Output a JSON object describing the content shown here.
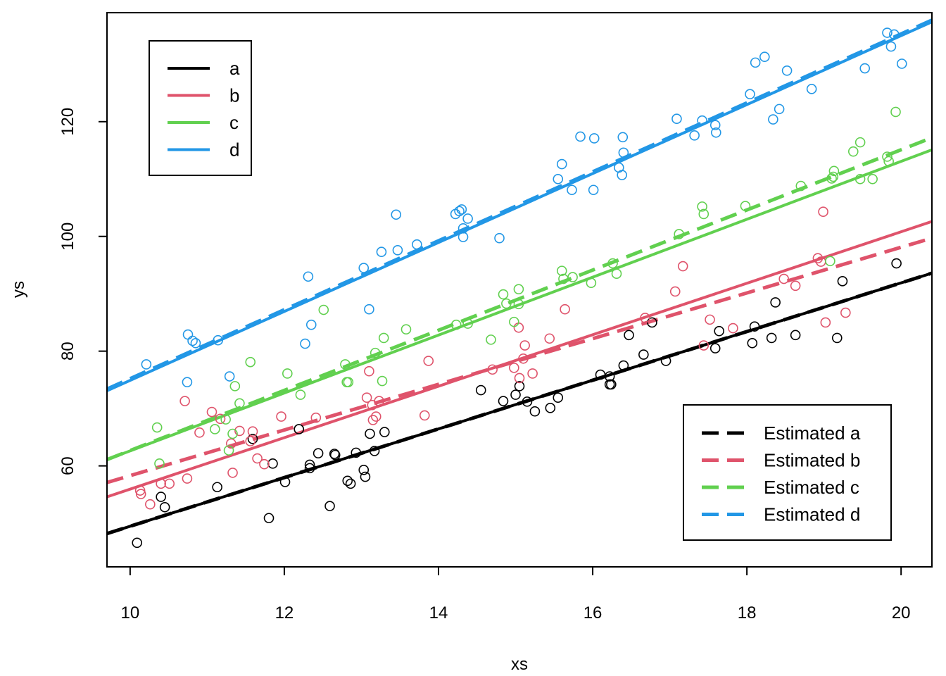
{
  "chart_data": {
    "type": "scatter",
    "title": "",
    "xlabel": "xs",
    "ylabel": "ys",
    "xlim": [
      9.7,
      20.4
    ],
    "ylim": [
      42.4,
      139.0
    ],
    "xticks": [
      10,
      12,
      14,
      16,
      18,
      20
    ],
    "yticks": [
      60,
      80,
      100,
      120
    ],
    "grid": false,
    "legend_lines_position": "top-left",
    "legend_estimated_position": "bottom-right",
    "series": [
      {
        "name": "a",
        "color": "#000000",
        "line": [
          [
            9.7,
            48.2
          ],
          [
            20.4,
            93.6
          ]
        ],
        "estimated_line": [
          [
            9.7,
            48.2
          ],
          [
            20.4,
            93.6
          ]
        ],
        "estimated_label": "Estimated a",
        "points": [
          [
            10.09,
            46.6
          ],
          [
            10.4,
            54.6
          ],
          [
            10.45,
            52.8
          ],
          [
            11.13,
            56.3
          ],
          [
            11.59,
            64.7
          ],
          [
            11.8,
            50.9
          ],
          [
            11.85,
            60.4
          ],
          [
            12.01,
            57.2
          ],
          [
            12.19,
            66.4
          ],
          [
            12.33,
            59.6
          ],
          [
            12.33,
            60.2
          ],
          [
            12.44,
            62.2
          ],
          [
            12.59,
            53.0
          ],
          [
            12.65,
            62.1
          ],
          [
            12.66,
            61.9
          ],
          [
            12.82,
            57.4
          ],
          [
            12.86,
            56.9
          ],
          [
            12.93,
            62.3
          ],
          [
            13.03,
            59.3
          ],
          [
            13.05,
            58.1
          ],
          [
            13.11,
            65.6
          ],
          [
            13.17,
            62.6
          ],
          [
            13.3,
            65.9
          ],
          [
            14.55,
            73.2
          ],
          [
            14.84,
            71.3
          ],
          [
            15.0,
            72.4
          ],
          [
            15.05,
            73.9
          ],
          [
            15.15,
            71.2
          ],
          [
            15.25,
            69.5
          ],
          [
            15.45,
            70.1
          ],
          [
            15.55,
            71.9
          ],
          [
            16.1,
            75.9
          ],
          [
            16.22,
            75.6
          ],
          [
            16.22,
            74.2
          ],
          [
            16.24,
            74.2
          ],
          [
            16.4,
            77.5
          ],
          [
            16.47,
            82.8
          ],
          [
            16.66,
            79.4
          ],
          [
            16.77,
            85.0
          ],
          [
            16.95,
            78.3
          ],
          [
            17.59,
            80.5
          ],
          [
            17.64,
            83.5
          ],
          [
            18.07,
            81.4
          ],
          [
            18.1,
            84.3
          ],
          [
            18.32,
            82.3
          ],
          [
            18.37,
            88.5
          ],
          [
            18.63,
            82.8
          ],
          [
            19.17,
            82.3
          ],
          [
            19.24,
            92.2
          ],
          [
            19.94,
            95.3
          ]
        ]
      },
      {
        "name": "b",
        "color": "#df536b",
        "line": [
          [
            9.7,
            54.6
          ],
          [
            20.4,
            102.6
          ]
        ],
        "estimated_line": [
          [
            9.7,
            57.1
          ],
          [
            20.4,
            99.7
          ]
        ],
        "estimated_label": "Estimated b",
        "points": [
          [
            10.13,
            55.7
          ],
          [
            10.14,
            55.1
          ],
          [
            10.26,
            53.3
          ],
          [
            10.4,
            56.9
          ],
          [
            10.51,
            56.9
          ],
          [
            10.71,
            71.3
          ],
          [
            10.74,
            57.8
          ],
          [
            10.9,
            65.8
          ],
          [
            11.06,
            69.4
          ],
          [
            11.17,
            68.2
          ],
          [
            11.31,
            63.9
          ],
          [
            11.33,
            58.8
          ],
          [
            11.42,
            66.1
          ],
          [
            11.56,
            64.3
          ],
          [
            11.59,
            66.0
          ],
          [
            11.65,
            61.3
          ],
          [
            11.74,
            60.3
          ],
          [
            11.96,
            68.6
          ],
          [
            12.41,
            68.4
          ],
          [
            13.07,
            71.9
          ],
          [
            13.14,
            70.6
          ],
          [
            13.15,
            68.0
          ],
          [
            13.19,
            68.6
          ],
          [
            13.23,
            71.3
          ],
          [
            13.1,
            76.5
          ],
          [
            13.82,
            68.8
          ],
          [
            13.87,
            78.3
          ],
          [
            14.7,
            76.8
          ],
          [
            14.98,
            77.1
          ],
          [
            15.04,
            84.1
          ],
          [
            15.05,
            75.3
          ],
          [
            15.1,
            78.7
          ],
          [
            15.12,
            81.0
          ],
          [
            15.22,
            76.1
          ],
          [
            15.44,
            82.2
          ],
          [
            15.64,
            87.3
          ],
          [
            16.68,
            85.8
          ],
          [
            17.07,
            90.4
          ],
          [
            17.17,
            94.8
          ],
          [
            17.44,
            81.0
          ],
          [
            17.52,
            85.5
          ],
          [
            17.82,
            84.0
          ],
          [
            18.48,
            92.6
          ],
          [
            18.63,
            91.4
          ],
          [
            18.92,
            96.2
          ],
          [
            18.96,
            95.6
          ],
          [
            18.99,
            104.3
          ],
          [
            19.02,
            85.0
          ],
          [
            19.28,
            86.7
          ]
        ]
      },
      {
        "name": "c",
        "color": "#61d04f",
        "line": [
          [
            9.7,
            61.1
          ],
          [
            20.4,
            115.1
          ]
        ],
        "estimated_line": [
          [
            9.7,
            61.1
          ],
          [
            20.4,
            117.2
          ]
        ],
        "estimated_label": "Estimated c",
        "points": [
          [
            10.35,
            66.7
          ],
          [
            10.38,
            60.4
          ],
          [
            11.1,
            66.4
          ],
          [
            11.24,
            68.1
          ],
          [
            11.28,
            62.7
          ],
          [
            11.33,
            65.6
          ],
          [
            11.36,
            73.9
          ],
          [
            11.42,
            70.9
          ],
          [
            11.56,
            78.1
          ],
          [
            12.04,
            76.1
          ],
          [
            12.21,
            72.4
          ],
          [
            12.51,
            87.2
          ],
          [
            12.79,
            77.7
          ],
          [
            12.81,
            74.6
          ],
          [
            12.83,
            74.6
          ],
          [
            13.18,
            79.7
          ],
          [
            13.27,
            74.8
          ],
          [
            13.29,
            82.3
          ],
          [
            13.58,
            83.8
          ],
          [
            14.23,
            84.6
          ],
          [
            14.38,
            84.8
          ],
          [
            14.68,
            82.0
          ],
          [
            14.84,
            89.9
          ],
          [
            14.88,
            88.3
          ],
          [
            14.98,
            85.1
          ],
          [
            15.04,
            90.8
          ],
          [
            15.04,
            88.2
          ],
          [
            15.6,
            94.0
          ],
          [
            15.62,
            92.6
          ],
          [
            15.74,
            92.9
          ],
          [
            15.98,
            91.9
          ],
          [
            16.26,
            95.3
          ],
          [
            16.31,
            93.5
          ],
          [
            17.12,
            100.4
          ],
          [
            17.42,
            105.2
          ],
          [
            17.44,
            103.9
          ],
          [
            17.98,
            105.3
          ],
          [
            18.7,
            108.8
          ],
          [
            19.08,
            95.7
          ],
          [
            19.1,
            110.1
          ],
          [
            19.12,
            110.4
          ],
          [
            19.13,
            111.4
          ],
          [
            19.38,
            114.8
          ],
          [
            19.47,
            110.0
          ],
          [
            19.47,
            116.4
          ],
          [
            19.63,
            110.0
          ],
          [
            19.82,
            113.9
          ],
          [
            19.84,
            113.1
          ],
          [
            19.93,
            121.7
          ]
        ]
      },
      {
        "name": "d",
        "color": "#2297e6",
        "line": [
          [
            9.7,
            73.1
          ],
          [
            20.4,
            137.4
          ]
        ],
        "estimated_line": [
          [
            9.7,
            73.4
          ],
          [
            20.4,
            137.7
          ]
        ],
        "estimated_label": "Estimated d",
        "points": [
          [
            10.21,
            77.7
          ],
          [
            10.74,
            74.6
          ],
          [
            10.75,
            82.9
          ],
          [
            10.81,
            81.8
          ],
          [
            10.85,
            81.4
          ],
          [
            11.14,
            81.9
          ],
          [
            11.29,
            75.6
          ],
          [
            12.27,
            81.3
          ],
          [
            12.31,
            93.0
          ],
          [
            12.35,
            84.6
          ],
          [
            13.03,
            94.5
          ],
          [
            13.1,
            87.3
          ],
          [
            13.26,
            97.3
          ],
          [
            13.45,
            103.8
          ],
          [
            13.47,
            97.6
          ],
          [
            13.72,
            98.6
          ],
          [
            14.22,
            103.9
          ],
          [
            14.27,
            104.4
          ],
          [
            14.3,
            104.7
          ],
          [
            14.32,
            99.9
          ],
          [
            14.32,
            101.4
          ],
          [
            14.38,
            103.1
          ],
          [
            14.79,
            99.7
          ],
          [
            15.55,
            110.0
          ],
          [
            15.6,
            112.6
          ],
          [
            15.73,
            108.1
          ],
          [
            15.84,
            117.4
          ],
          [
            16.01,
            108.1
          ],
          [
            16.02,
            117.1
          ],
          [
            16.34,
            112.0
          ],
          [
            16.38,
            110.7
          ],
          [
            16.39,
            117.3
          ],
          [
            16.4,
            114.6
          ],
          [
            17.09,
            120.5
          ],
          [
            17.32,
            117.6
          ],
          [
            17.42,
            120.2
          ],
          [
            17.59,
            119.4
          ],
          [
            17.6,
            118.1
          ],
          [
            18.04,
            124.8
          ],
          [
            18.11,
            130.3
          ],
          [
            18.23,
            131.3
          ],
          [
            18.34,
            120.4
          ],
          [
            18.42,
            122.2
          ],
          [
            18.52,
            128.9
          ],
          [
            18.84,
            125.7
          ],
          [
            19.53,
            129.3
          ],
          [
            19.82,
            135.5
          ],
          [
            19.87,
            133.1
          ],
          [
            19.91,
            135.2
          ],
          [
            20.01,
            130.1
          ]
        ]
      }
    ]
  }
}
